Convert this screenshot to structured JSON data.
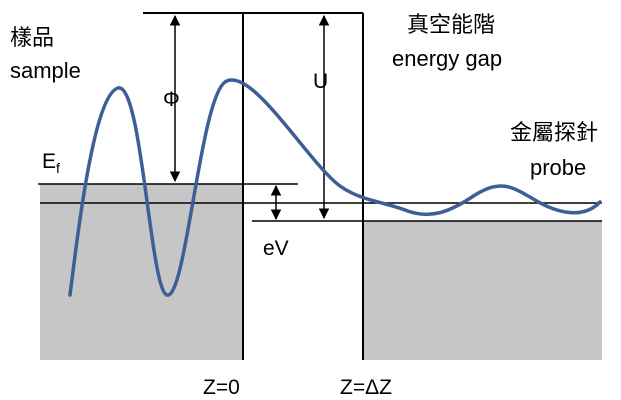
{
  "labels": {
    "sample_zh": "樣品",
    "sample_en": "sample",
    "gap_zh": "真空能階",
    "gap_en": "energy gap",
    "probe_zh": "金屬探針",
    "probe_en": "probe",
    "fermi_main": "E",
    "fermi_sub": "f",
    "phi": "Φ",
    "barrier": "U",
    "bias": "eV",
    "z0": "Z=0",
    "zdz": "Z=ΔZ"
  },
  "colors": {
    "metal_fill": "#c6c6c6",
    "wave": "#3e5f96",
    "line": "#000000"
  }
}
